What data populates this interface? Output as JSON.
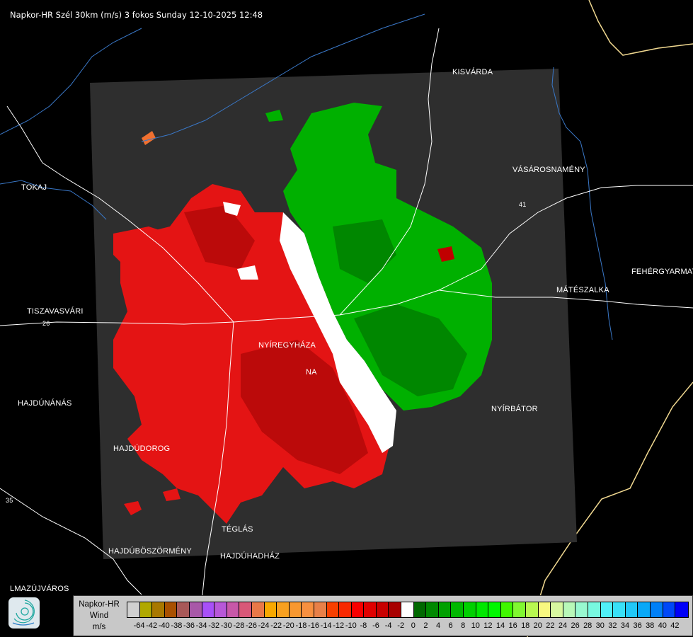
{
  "title": "Napkor-HR Szél 30km (m/s) 3 fokos Sunday 12-10-2025 12:48",
  "cities": [
    {
      "name": "KISVÁRDA"
    },
    {
      "name": "VÁSÁROSNAMÉNY"
    },
    {
      "name": "TOKAJ"
    },
    {
      "name": "FEHÉRGYARMAT"
    },
    {
      "name": "MÁTÉSZALKA"
    },
    {
      "name": "TISZAVASVÁRI"
    },
    {
      "name": "NYÍREGYHÁZA"
    },
    {
      "name": "NA"
    },
    {
      "name": "NYÍRBÁTOR"
    },
    {
      "name": "HAJDÚNÁNÁS"
    },
    {
      "name": "HAJDÚDOROG"
    },
    {
      "name": "TÉGLÁS"
    },
    {
      "name": "HAJDÚBÖSZÖRMÉNY"
    },
    {
      "name": "HAJDÚHADHÁZ"
    },
    {
      "name": "LMAZÚJVÁROS"
    }
  ],
  "road_numbers": [
    "26",
    "41",
    "35"
  ],
  "legend": {
    "source": "Napkor-HR",
    "quantity": "Wind",
    "unit": "m/s",
    "colors": [
      "#d0d0d0",
      "#b0a800",
      "#a87800",
      "#a85000",
      "#a85858",
      "#a858a8",
      "#a850f8",
      "#b858d8",
      "#c858a8",
      "#d85878",
      "#e87848",
      "#f8a800",
      "#f8a020",
      "#f89830",
      "#f89040",
      "#e88048",
      "#f84000",
      "#f82800",
      "#f80000",
      "#e00000",
      "#c80000",
      "#a80000",
      "#ffffff",
      "#006800",
      "#008800",
      "#00a000",
      "#00b800",
      "#00d000",
      "#00e800",
      "#00f800",
      "#40f800",
      "#80f830",
      "#b8f850",
      "#f8f880",
      "#d8f8a0",
      "#b8f8b8",
      "#98f8d0",
      "#78f8e0",
      "#50f0f8",
      "#38e0f8",
      "#20c8f8",
      "#08a8f8",
      "#0080f8",
      "#0048f8",
      "#0000f8"
    ],
    "ticks": [
      "-64",
      "-42",
      "-40",
      "-38",
      "-36",
      "-34",
      "-32",
      "-30",
      "-28",
      "-26",
      "-24",
      "-22",
      "-20",
      "-18",
      "-16",
      "-14",
      "-12",
      "-10",
      "-8",
      "-6",
      "-4",
      "-2",
      "0",
      "2",
      "4",
      "6",
      "8",
      "10",
      "12",
      "14",
      "16",
      "18",
      "20",
      "22",
      "24",
      "26",
      "28",
      "30",
      "32",
      "34",
      "36",
      "38",
      "40",
      "42"
    ]
  },
  "colors": {
    "approaching": "#e01010",
    "receding": "#00a800",
    "radar_area": "#2e2e2e",
    "border": "#f0d890",
    "rivers": "#3a78c8"
  }
}
